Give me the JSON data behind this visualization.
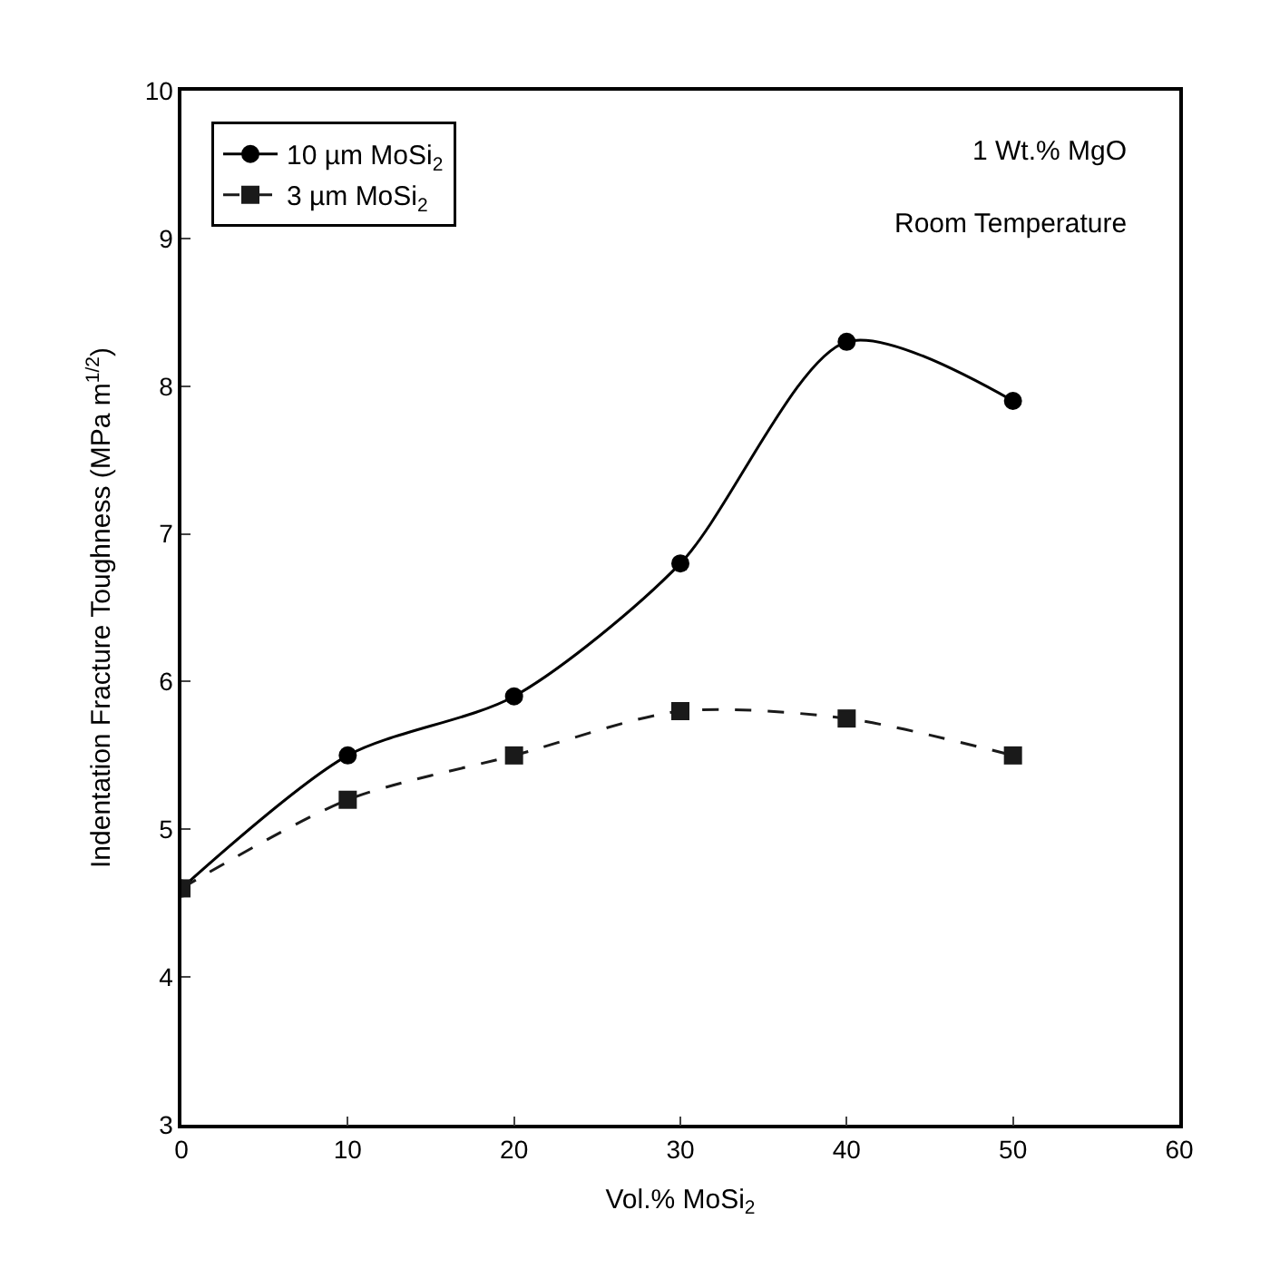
{
  "chart_data": {
    "type": "line",
    "xlabel": "Vol.% MoSi$_{2}$",
    "ylabel": "Indentation Fracture Toughness (MPa m$^{1/2}$)",
    "x": [
      0,
      10,
      20,
      30,
      40,
      50
    ],
    "series": [
      {
        "name": "10 µm MoSi$_{2}$",
        "color": "#000000",
        "values": [
          4.6,
          5.5,
          5.9,
          6.8,
          8.3,
          7.9
        ],
        "marker": "circle",
        "line_style": "solid"
      },
      {
        "name": "3 µm MoSi$_{2}$",
        "color": "#1a1a1a",
        "values": [
          4.6,
          5.2,
          5.5,
          5.8,
          5.75,
          5.5
        ],
        "marker": "square",
        "line_style": "dashed"
      }
    ],
    "xlim": [
      0,
      60
    ],
    "xticks": [
      0,
      10,
      20,
      30,
      40,
      50,
      60
    ],
    "ylim": [
      3,
      10
    ],
    "yticks": [
      3,
      4,
      5,
      6,
      7,
      8,
      9,
      10
    ],
    "annotations": [
      "1 Wt.% MgO",
      "Room Temperature"
    ],
    "legend": "top left"
  }
}
